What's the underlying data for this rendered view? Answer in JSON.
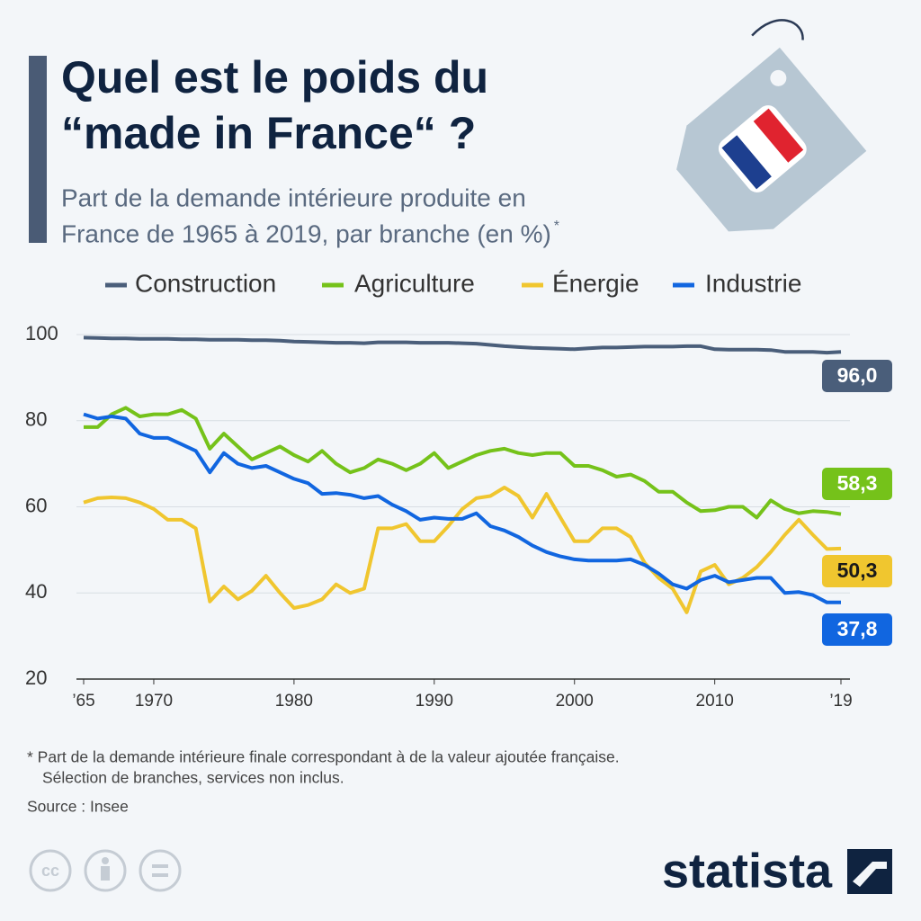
{
  "chart_data": {
    "type": "line",
    "title": [
      "Quel est le poids du",
      "“made in France“ ?"
    ],
    "subtitle": [
      "Part de la demande intérieure produite en",
      "France de 1965 à 2019, par branche (en %)"
    ],
    "subtitle_marker": "*",
    "note": [
      "* Part de la demande intérieure finale correspondant à de la valeur ajoutée française.",
      "Sélection de branches, services non inclus."
    ],
    "source": "Source : Insee",
    "brand": "statista",
    "license": "cc",
    "x": [
      1965,
      1966,
      1967,
      1968,
      1969,
      1970,
      1971,
      1972,
      1973,
      1974,
      1975,
      1976,
      1977,
      1978,
      1979,
      1980,
      1981,
      1982,
      1983,
      1984,
      1985,
      1986,
      1987,
      1988,
      1989,
      1990,
      1991,
      1992,
      1993,
      1994,
      1995,
      1996,
      1997,
      1998,
      1999,
      2000,
      2001,
      2002,
      2003,
      2004,
      2005,
      2006,
      2007,
      2008,
      2009,
      2010,
      2011,
      2012,
      2013,
      2014,
      2015,
      2016,
      2017,
      2018,
      2019
    ],
    "xlim": [
      1965,
      2019
    ],
    "xticks": [
      {
        "value": 1965,
        "label": "’65"
      },
      1970,
      1980,
      1990,
      2000,
      2010,
      {
        "value": 2019,
        "label": "’19"
      }
    ],
    "ylim": [
      20,
      100
    ],
    "yticks": [
      20,
      40,
      60,
      80,
      100
    ],
    "grid": true,
    "series": [
      {
        "name": "Construction",
        "color": "#4a5e7a",
        "values": [
          99.3,
          99.2,
          99.1,
          99.1,
          99.0,
          99.0,
          99.0,
          98.9,
          98.9,
          98.8,
          98.8,
          98.8,
          98.7,
          98.7,
          98.6,
          98.4,
          98.3,
          98.2,
          98.1,
          98.1,
          98.0,
          98.2,
          98.2,
          98.2,
          98.1,
          98.1,
          98.1,
          98.0,
          97.9,
          97.6,
          97.3,
          97.1,
          96.9,
          96.8,
          96.7,
          96.6,
          96.8,
          97.0,
          97.0,
          97.1,
          97.2,
          97.2,
          97.2,
          97.3,
          97.3,
          96.6,
          96.5,
          96.5,
          96.5,
          96.4,
          96.0,
          96.0,
          96.0,
          95.8,
          96.0
        ],
        "value_labels": [
          null,
          null,
          null,
          null,
          null,
          null,
          null,
          null,
          null,
          null,
          null,
          null,
          null,
          null,
          null,
          null,
          null,
          null,
          null,
          null,
          null,
          null,
          null,
          null,
          null,
          null,
          null,
          null,
          null,
          null,
          null,
          null,
          null,
          null,
          null,
          null,
          null,
          null,
          null,
          null,
          null,
          null,
          null,
          null,
          null,
          null,
          null,
          null,
          null,
          null,
          null,
          null,
          null,
          null,
          "96,0"
        ]
      },
      {
        "name": "Agriculture",
        "color": "#75c21a",
        "values": [
          78.5,
          78.5,
          81.5,
          83,
          81,
          81.5,
          81.5,
          82.5,
          80.5,
          73.5,
          77,
          74,
          71,
          72.5,
          74,
          72,
          70.5,
          73,
          70,
          68,
          69,
          71,
          70,
          68.5,
          70,
          72.5,
          69,
          70.5,
          72,
          73,
          73.5,
          72.5,
          72,
          72.5,
          72.5,
          69.5,
          69.5,
          68.5,
          67,
          67.5,
          66,
          63.5,
          63.5,
          61,
          59,
          59.2,
          60,
          60,
          57.5,
          61.5,
          59.5,
          58.5,
          59,
          58.8,
          58.3
        ],
        "value_labels": [
          null,
          null,
          null,
          null,
          null,
          null,
          null,
          null,
          null,
          null,
          null,
          null,
          null,
          null,
          null,
          null,
          null,
          null,
          null,
          null,
          null,
          null,
          null,
          null,
          null,
          null,
          null,
          null,
          null,
          null,
          null,
          null,
          null,
          null,
          null,
          null,
          null,
          null,
          null,
          null,
          null,
          null,
          null,
          null,
          null,
          null,
          null,
          null,
          null,
          null,
          null,
          null,
          null,
          null,
          "58,3"
        ]
      },
      {
        "name": "Énergie",
        "color": "#f0c62f",
        "values": [
          61,
          62,
          62.2,
          62,
          61,
          59.5,
          57,
          57,
          55,
          38,
          41.5,
          38.5,
          40.5,
          44,
          40,
          36.5,
          37.2,
          38.5,
          42,
          40,
          41,
          55,
          55,
          56,
          52,
          52,
          55.5,
          59.5,
          62,
          62.5,
          64.5,
          62.5,
          57.5,
          63,
          57.5,
          52,
          52,
          55,
          55,
          53,
          47,
          43.5,
          41,
          35.5,
          45,
          46.5,
          42,
          43.5,
          46,
          49.5,
          53.5,
          57,
          53.5,
          50.2,
          50.3
        ],
        "value_labels": [
          null,
          null,
          null,
          null,
          null,
          null,
          null,
          null,
          null,
          null,
          null,
          null,
          null,
          null,
          null,
          null,
          null,
          null,
          null,
          null,
          null,
          null,
          null,
          null,
          null,
          null,
          null,
          null,
          null,
          null,
          null,
          null,
          null,
          null,
          null,
          null,
          null,
          null,
          null,
          null,
          null,
          null,
          null,
          null,
          null,
          null,
          null,
          null,
          null,
          null,
          null,
          null,
          null,
          null,
          "50,3"
        ]
      },
      {
        "name": "Industrie",
        "color": "#1166e0",
        "values": [
          81.5,
          80.5,
          81,
          80.5,
          77,
          76,
          76,
          74.5,
          73,
          68,
          72.5,
          70,
          69,
          69.5,
          68,
          66.5,
          65.5,
          63,
          63.2,
          62.8,
          62,
          62.5,
          60.5,
          59,
          57,
          57.5,
          57.2,
          57.2,
          58.5,
          55.5,
          54.5,
          53,
          51,
          49.5,
          48.5,
          47.8,
          47.5,
          47.5,
          47.5,
          47.8,
          46.5,
          44.5,
          42,
          41,
          43,
          44,
          42.5,
          43,
          43.5,
          43.5,
          40,
          40.2,
          39.5,
          37.8,
          37.8
        ],
        "value_labels": [
          null,
          null,
          null,
          null,
          null,
          null,
          null,
          null,
          null,
          null,
          null,
          null,
          null,
          null,
          null,
          null,
          null,
          null,
          null,
          null,
          null,
          null,
          null,
          null,
          null,
          null,
          null,
          null,
          null,
          null,
          null,
          null,
          null,
          null,
          null,
          null,
          null,
          null,
          null,
          null,
          null,
          null,
          null,
          null,
          null,
          null,
          null,
          null,
          null,
          null,
          null,
          null,
          null,
          null,
          "37,8"
        ]
      }
    ]
  }
}
